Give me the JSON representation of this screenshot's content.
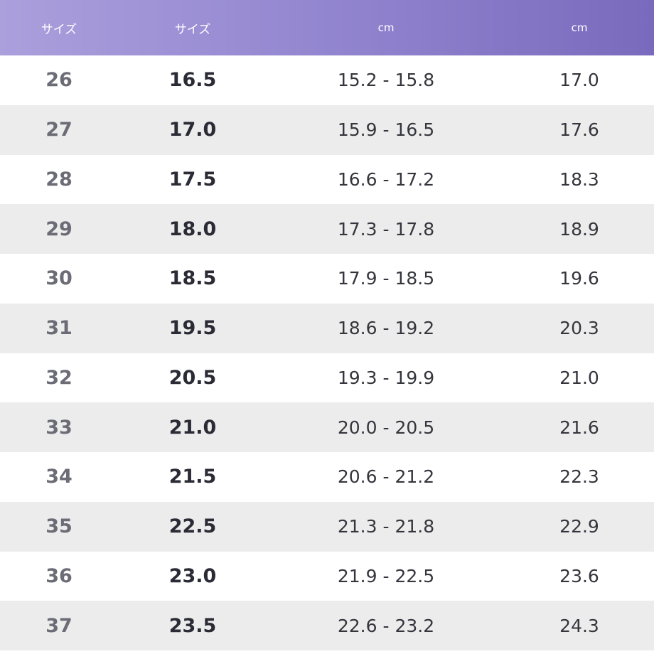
{
  "table": {
    "header": [
      "サイズ",
      "サイズ",
      "cm",
      "cm"
    ],
    "rows": [
      [
        "26",
        "16.5",
        "15.2 - 15.8",
        "17.0"
      ],
      [
        "27",
        "17.0",
        "15.9 - 16.5",
        "17.6"
      ],
      [
        "28",
        "17.5",
        "16.6 - 17.2",
        "18.3"
      ],
      [
        "29",
        "18.0",
        "17.3 - 17.8",
        "18.9"
      ],
      [
        "30",
        "18.5",
        "17.9 - 18.5",
        "19.6"
      ],
      [
        "31",
        "19.5",
        "18.6 - 19.2",
        "20.3"
      ],
      [
        "32",
        "20.5",
        "19.3 - 19.9",
        "21.0"
      ],
      [
        "33",
        "21.0",
        "20.0 - 20.5",
        "21.6"
      ],
      [
        "34",
        "21.5",
        "20.6 - 21.2",
        "22.3"
      ],
      [
        "35",
        "22.5",
        "21.3 - 21.8",
        "22.9"
      ],
      [
        "36",
        "23.0",
        "21.9 - 22.5",
        "23.6"
      ],
      [
        "37",
        "23.5",
        "22.6 - 23.2",
        "24.3"
      ]
    ]
  }
}
